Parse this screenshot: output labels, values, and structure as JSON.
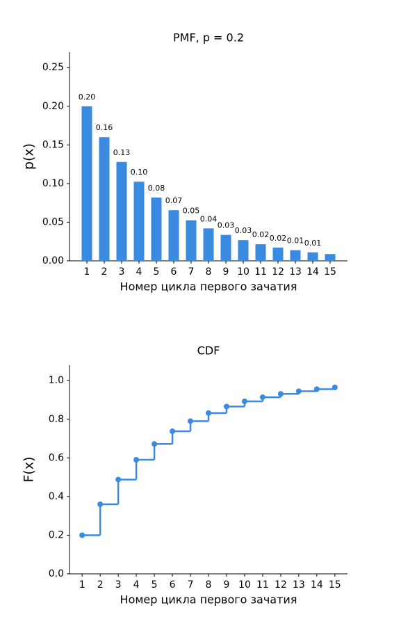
{
  "chart_data": [
    {
      "type": "bar",
      "title": "PMF, p = 0.2",
      "xlabel": "Номер цикла первого зачатия",
      "ylabel": "p(x)",
      "x": [
        1,
        2,
        3,
        4,
        5,
        6,
        7,
        8,
        9,
        10,
        11,
        12,
        13,
        14,
        15
      ],
      "values": [
        0.2,
        0.16,
        0.128,
        0.1024,
        0.08192,
        0.065536,
        0.0524288,
        0.041943,
        0.033554,
        0.026844,
        0.021475,
        0.01718,
        0.013744,
        0.010995,
        0.008796
      ],
      "value_labels": [
        "0.20",
        "0.16",
        "0.13",
        "0.10",
        "0.08",
        "0.07",
        "0.05",
        "0.04",
        "0.03",
        "0.03",
        "0.02",
        "0.02",
        "0.01",
        "0.01",
        null
      ],
      "color": "#3a8ae0",
      "xlim": [
        0,
        16
      ],
      "xticks": [
        1,
        2,
        3,
        4,
        5,
        6,
        7,
        8,
        9,
        10,
        11,
        12,
        13,
        14,
        15
      ],
      "ylim": [
        0,
        0.27
      ],
      "yticks": [
        {
          "value": 0,
          "label": "0.00"
        },
        0.05,
        {
          "value": 0.1,
          "label": "0.10"
        },
        0.15,
        {
          "value": 0.2,
          "label": "0.20"
        },
        0.25
      ]
    },
    {
      "type": "step",
      "title": "CDF",
      "xlabel": "Номер цикла первого зачатия",
      "ylabel": "F(x)",
      "x": [
        1,
        2,
        3,
        4,
        5,
        6,
        7,
        8,
        9,
        10,
        11,
        12,
        13,
        14,
        15
      ],
      "values": [
        0.2,
        0.36,
        0.488,
        0.5904,
        0.67232,
        0.737856,
        0.790285,
        0.832228,
        0.865782,
        0.892626,
        0.914101,
        0.931281,
        0.945024,
        0.95602,
        0.964816
      ],
      "color": "#3a8ae0",
      "xlim": [
        0.3,
        15.7
      ],
      "xticks": [
        1,
        2,
        3,
        4,
        5,
        6,
        7,
        8,
        9,
        10,
        11,
        12,
        13,
        14,
        15
      ],
      "ylim": [
        0,
        1.08
      ],
      "yticks": [
        {
          "value": 0,
          "label": "0.0"
        },
        0.2,
        0.4,
        0.6,
        0.8,
        {
          "value": 1,
          "label": "1.0"
        }
      ]
    }
  ]
}
